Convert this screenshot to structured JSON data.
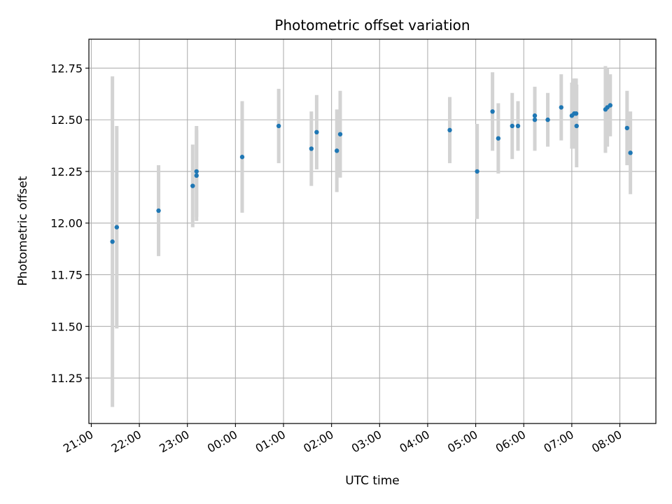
{
  "chart_data": {
    "type": "scatter",
    "title": "Photometric offset variation",
    "xlabel": "UTC time",
    "ylabel": "Photometric offset",
    "x_unit": "hours (UTC, continuing past midnight)",
    "xlim": [
      20.95,
      32.75
    ],
    "ylim": [
      11.03,
      12.89
    ],
    "grid": true,
    "colors": {
      "point": "#1f77b4",
      "errorbar": "#d3d3d3",
      "grid": "#b0b0b0",
      "axes": "#000000"
    },
    "x_ticks": [
      {
        "value": 21,
        "label": "21:00"
      },
      {
        "value": 22,
        "label": "22:00"
      },
      {
        "value": 23,
        "label": "23:00"
      },
      {
        "value": 24,
        "label": "00:00"
      },
      {
        "value": 25,
        "label": "01:00"
      },
      {
        "value": 26,
        "label": "02:00"
      },
      {
        "value": 27,
        "label": "03:00"
      },
      {
        "value": 28,
        "label": "04:00"
      },
      {
        "value": 29,
        "label": "05:00"
      },
      {
        "value": 30,
        "label": "06:00"
      },
      {
        "value": 31,
        "label": "07:00"
      },
      {
        "value": 32,
        "label": "08:00"
      }
    ],
    "y_ticks": [
      {
        "value": 11.25,
        "label": "11.25"
      },
      {
        "value": 11.5,
        "label": "11.50"
      },
      {
        "value": 11.75,
        "label": "11.75"
      },
      {
        "value": 12.0,
        "label": "12.00"
      },
      {
        "value": 12.25,
        "label": "12.25"
      },
      {
        "value": 12.5,
        "label": "12.50"
      },
      {
        "value": 12.75,
        "label": "12.75"
      }
    ],
    "points": [
      {
        "x": 21.44,
        "y": 11.91,
        "err": 0.8
      },
      {
        "x": 21.53,
        "y": 11.98,
        "err": 0.49
      },
      {
        "x": 22.4,
        "y": 12.06,
        "err": 0.22
      },
      {
        "x": 23.11,
        "y": 12.18,
        "err": 0.2
      },
      {
        "x": 23.19,
        "y": 12.25,
        "err": 0.22
      },
      {
        "x": 23.19,
        "y": 12.23,
        "err": 0.22
      },
      {
        "x": 24.14,
        "y": 12.32,
        "err": 0.27
      },
      {
        "x": 24.9,
        "y": 12.47,
        "err": 0.18
      },
      {
        "x": 25.58,
        "y": 12.36,
        "err": 0.18
      },
      {
        "x": 25.69,
        "y": 12.44,
        "err": 0.18
      },
      {
        "x": 26.11,
        "y": 12.35,
        "err": 0.2
      },
      {
        "x": 26.18,
        "y": 12.43,
        "err": 0.21
      },
      {
        "x": 28.46,
        "y": 12.45,
        "err": 0.16
      },
      {
        "x": 29.03,
        "y": 12.25,
        "err": 0.23
      },
      {
        "x": 29.35,
        "y": 12.54,
        "err": 0.19
      },
      {
        "x": 29.47,
        "y": 12.41,
        "err": 0.17
      },
      {
        "x": 29.76,
        "y": 12.47,
        "err": 0.16
      },
      {
        "x": 29.88,
        "y": 12.47,
        "err": 0.12
      },
      {
        "x": 30.23,
        "y": 12.5,
        "err": 0.15
      },
      {
        "x": 30.23,
        "y": 12.52,
        "err": 0.14
      },
      {
        "x": 30.5,
        "y": 12.5,
        "err": 0.13
      },
      {
        "x": 30.78,
        "y": 12.56,
        "err": 0.16
      },
      {
        "x": 31.0,
        "y": 12.52,
        "err": 0.16
      },
      {
        "x": 31.05,
        "y": 12.53,
        "err": 0.17
      },
      {
        "x": 31.09,
        "y": 12.53,
        "err": 0.17
      },
      {
        "x": 31.1,
        "y": 12.47,
        "err": 0.2
      },
      {
        "x": 31.7,
        "y": 12.55,
        "err": 0.21
      },
      {
        "x": 31.74,
        "y": 12.56,
        "err": 0.19
      },
      {
        "x": 31.8,
        "y": 12.57,
        "err": 0.15
      },
      {
        "x": 32.15,
        "y": 12.46,
        "err": 0.18
      },
      {
        "x": 32.22,
        "y": 12.34,
        "err": 0.2
      }
    ]
  }
}
